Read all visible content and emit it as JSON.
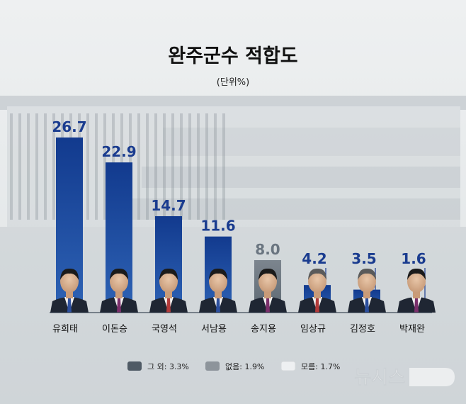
{
  "chart_data": {
    "type": "bar",
    "title": "완주군수 적합도",
    "subtitle": "(단위%)",
    "categories": [
      "유희태",
      "이돈승",
      "국영석",
      "서남용",
      "송지용",
      "임상규",
      "김정호",
      "박재완"
    ],
    "values": [
      26.7,
      22.9,
      14.7,
      11.6,
      8.0,
      4.2,
      3.5,
      1.6
    ],
    "value_labels": [
      "26.7",
      "22.9",
      "14.7",
      "11.6",
      "8.0",
      "4.2",
      "3.5",
      "1.6"
    ],
    "ylim": [
      0,
      30
    ],
    "grid": false,
    "legend_position": "bottom-center",
    "legend": [
      {
        "label": "그 외: 3.3%",
        "color": "#4f5a65"
      },
      {
        "label": "없음: 1.9%",
        "color": "#8d949b"
      },
      {
        "label": "모름: 1.7%",
        "color": "#eef0f2"
      }
    ]
  },
  "colors": {
    "bar_top": "#1a3c8f",
    "bar_bottom": "#2f5fb0",
    "bar_highlight": "#7e8790",
    "value_label": "#1a3c8f",
    "value_label_highlight": "#6a7580",
    "title": "#111111"
  },
  "watermark": "뉴시스",
  "photo_note": "background shows a government building; each category has a candidate portrait at the bar base"
}
